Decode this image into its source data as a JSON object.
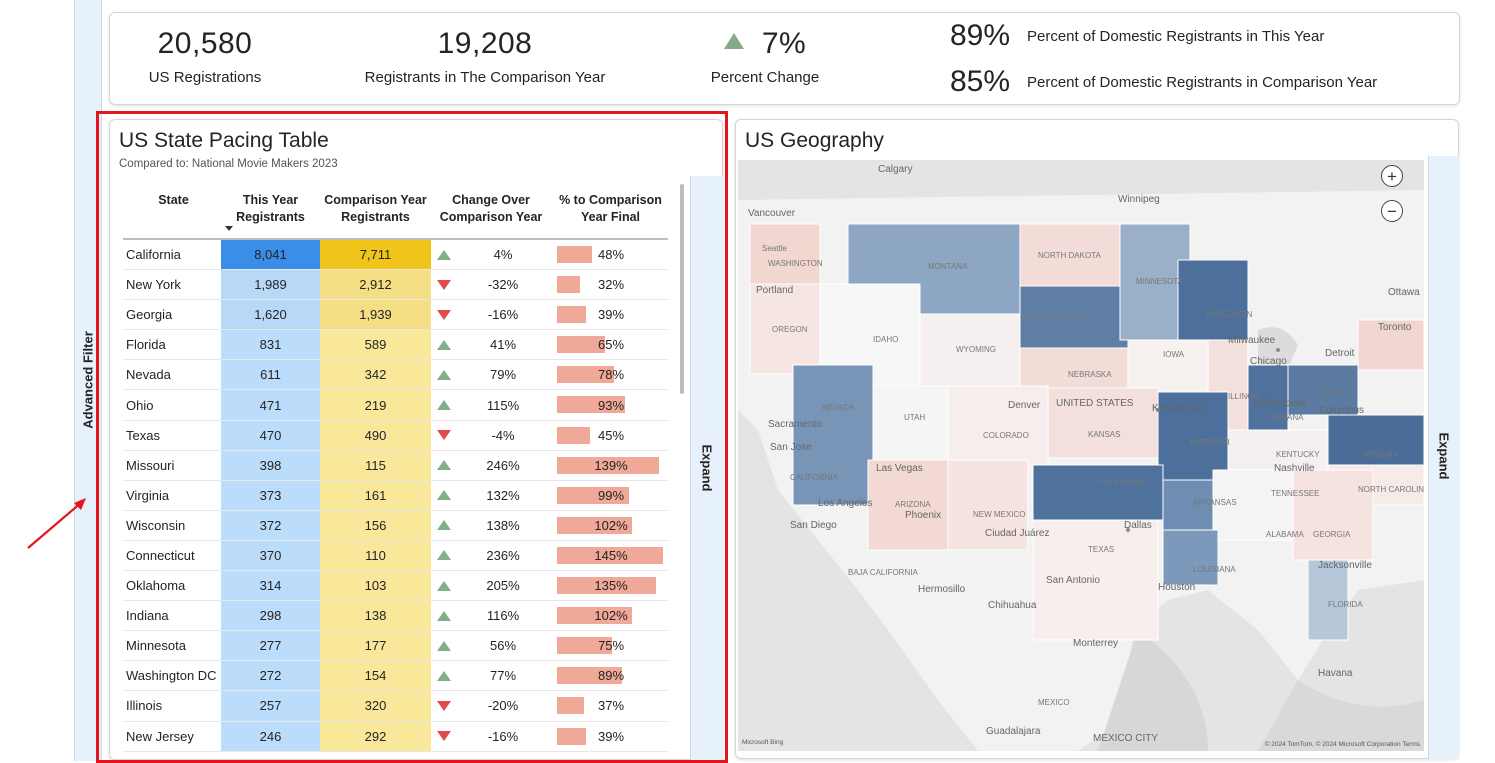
{
  "sidebar": {
    "filter_label": "Advanced Filter"
  },
  "kpis": {
    "us_registrations": {
      "value": "20,580",
      "label": "US Registrations"
    },
    "comparison_registrants": {
      "value": "19,208",
      "label": "Registrants in The Comparison Year"
    },
    "percent_change": {
      "value": "7%",
      "label": "Percent Change",
      "direction": "up"
    },
    "domestic_this_year": {
      "value": "89%",
      "label": "Percent of Domestic Registrants in This Year"
    },
    "domestic_comparison": {
      "value": "85%",
      "label": "Percent of Domestic Registrants in Comparison Year"
    }
  },
  "table_card": {
    "title": "US State Pacing Table",
    "subtitle": "Compared to: National Movie Makers 2023",
    "columns": [
      "State",
      "This Year Registrants",
      "Comparison Year Registrants",
      "Change Over Comparison Year",
      "% to Comparison Year Final"
    ],
    "column_lines": [
      [
        "State"
      ],
      [
        "This Year",
        "Registrants"
      ],
      [
        "Comparison Year",
        "Registrants"
      ],
      [
        "Change Over",
        "Comparison Year"
      ],
      [
        "% to Comparison",
        "Year Final"
      ]
    ],
    "expand_label": "Expand",
    "rows": [
      {
        "state": "California",
        "this_year": "8,041",
        "comparison": "7,711",
        "trend": "up",
        "change": "4%",
        "pct": "48%"
      },
      {
        "state": "New York",
        "this_year": "1,989",
        "comparison": "2,912",
        "trend": "down",
        "change": "-32%",
        "pct": "32%"
      },
      {
        "state": "Georgia",
        "this_year": "1,620",
        "comparison": "1,939",
        "trend": "down",
        "change": "-16%",
        "pct": "39%"
      },
      {
        "state": "Florida",
        "this_year": "831",
        "comparison": "589",
        "trend": "up",
        "change": "41%",
        "pct": "65%"
      },
      {
        "state": "Nevada",
        "this_year": "611",
        "comparison": "342",
        "trend": "up",
        "change": "79%",
        "pct": "78%"
      },
      {
        "state": "Ohio",
        "this_year": "471",
        "comparison": "219",
        "trend": "up",
        "change": "115%",
        "pct": "93%"
      },
      {
        "state": "Texas",
        "this_year": "470",
        "comparison": "490",
        "trend": "down",
        "change": "-4%",
        "pct": "45%"
      },
      {
        "state": "Missouri",
        "this_year": "398",
        "comparison": "115",
        "trend": "up",
        "change": "246%",
        "pct": "139%"
      },
      {
        "state": "Virginia",
        "this_year": "373",
        "comparison": "161",
        "trend": "up",
        "change": "132%",
        "pct": "99%"
      },
      {
        "state": "Wisconsin",
        "this_year": "372",
        "comparison": "156",
        "trend": "up",
        "change": "138%",
        "pct": "102%"
      },
      {
        "state": "Connecticut",
        "this_year": "370",
        "comparison": "110",
        "trend": "up",
        "change": "236%",
        "pct": "145%"
      },
      {
        "state": "Oklahoma",
        "this_year": "314",
        "comparison": "103",
        "trend": "up",
        "change": "205%",
        "pct": "135%"
      },
      {
        "state": "Indiana",
        "this_year": "298",
        "comparison": "138",
        "trend": "up",
        "change": "116%",
        "pct": "102%"
      },
      {
        "state": "Minnesota",
        "this_year": "277",
        "comparison": "177",
        "trend": "up",
        "change": "56%",
        "pct": "75%"
      },
      {
        "state": "Washington DC",
        "this_year": "272",
        "comparison": "154",
        "trend": "up",
        "change": "77%",
        "pct": "89%"
      },
      {
        "state": "Illinois",
        "this_year": "257",
        "comparison": "320",
        "trend": "down",
        "change": "-20%",
        "pct": "37%"
      },
      {
        "state": "New Jersey",
        "this_year": "246",
        "comparison": "292",
        "trend": "down",
        "change": "-16%",
        "pct": "39%"
      }
    ]
  },
  "map_card": {
    "title": "US Geography",
    "expand_label": "Expand",
    "zoom_in": "+",
    "zoom_out": "−",
    "attribution": "© 2024 TomTom, © 2024 Microsoft Corporation  Terms",
    "logo_text": "Microsoft Bing",
    "labels": {
      "calgary": "Calgary",
      "winnipeg": "Winnipeg",
      "vancouver": "Vancouver",
      "seattle": "Seattle",
      "washington": "WASHINGTON",
      "portland": "Portland",
      "oregon": "OREGON",
      "montana": "MONTANA",
      "north_dakota": "NORTH DAKOTA",
      "minnesota": "MINNESOTA",
      "south_dakota": "SOUTH DAKOTA",
      "wisconsin": "WISCONSIN",
      "milwaukee": "Milwaukee",
      "ottawa": "Ottawa",
      "toronto": "Toronto",
      "idaho": "IDAHO",
      "wyoming": "WYOMING",
      "iowa": "IOWA",
      "chicago": "Chicago",
      "detroit": "Detroit",
      "nebraska": "NEBRASKA",
      "united_states": "UNITED STATES",
      "denver": "Denver",
      "ohio": "OHIO",
      "nevada": "NEVADA",
      "utah": "UTAH",
      "kansas_city": "Kansas City",
      "illinois": "ILLINOIS",
      "indiana": "INDIANA",
      "columbus": "Columbus",
      "indianapolis": "Indianapolis",
      "sacramento": "Sacramento",
      "san_jose": "San Jose",
      "colorado": "COLORADO",
      "kansas": "KANSAS",
      "missouri": "MISSOURI",
      "kentucky": "KENTUCKY",
      "virginia": "VIRGINIA",
      "california": "CALIFORNIA",
      "las_vegas": "Las Vegas",
      "nashville": "Nashville",
      "tennessee": "TENNESSEE",
      "los_angeles": "Los Angeles",
      "oklahoma": "OKLAHOMA",
      "arkansas": "ARKANSAS",
      "north_carolina": "NORTH CAROLINA",
      "arizona": "ARIZONA",
      "phoenix": "Phoenix",
      "new_mexico": "NEW MEXICO",
      "san_diego": "San Diego",
      "dallas": "Dallas",
      "georgia": "GEORGIA",
      "alabama": "ALABAMA",
      "ciudad_juarez": "Ciudad Juárez",
      "texas": "TEXAS",
      "louisiana": "LOUISIANA",
      "san_antonio": "San Antonio",
      "houston": "Houston",
      "jacksonville": "Jacksonville",
      "florida": "FLORIDA",
      "baja_california": "BAJA CALIFORNIA",
      "hermosillo": "Hermosillo",
      "chihuahua": "Chihuahua",
      "monterrey": "Monterrey",
      "mexico": "MEXICO",
      "guadalajara": "Guadalajara",
      "mexico_city": "MEXICO CITY",
      "havana": "Havana"
    }
  },
  "colors": {
    "this_year_fill": "#bcdcfb",
    "this_year_top": "#3b8ee8",
    "comp_fill": "#f9e79a",
    "comp_top": "#f0c419",
    "bar": "#f0a898",
    "up": "#7fb087",
    "down": "#e04c4c",
    "highlight": "#e3171b",
    "map_dark": "#4c6f9b",
    "map_mid": "#8aa5c2",
    "map_light": "#c4d0de",
    "map_pink": "#f2d2cd"
  }
}
